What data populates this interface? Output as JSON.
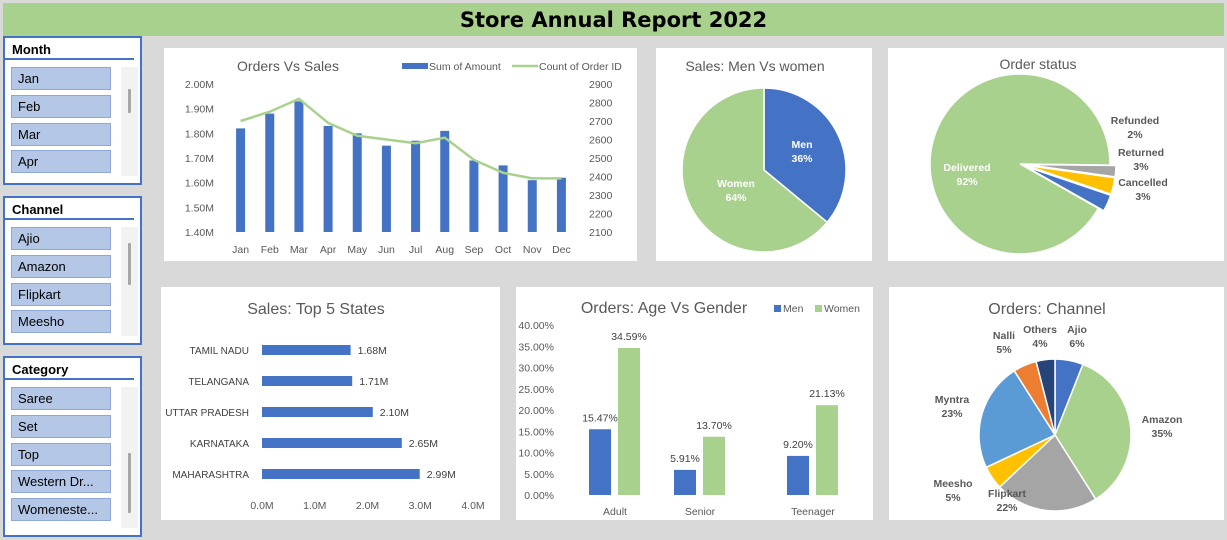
{
  "report_title": "Store Annual Report 2022",
  "colors": {
    "blue": "#4472c4",
    "green": "#a9d18e",
    "gray": "#a5a5a5",
    "yellow": "#ffc000",
    "lightblue": "#5b9bd5",
    "orange": "#ed7d31",
    "navy": "#264478",
    "title_bar": "#a9d18e"
  },
  "slicers": {
    "month": {
      "header": "Month",
      "items": [
        "Jan",
        "Feb",
        "Mar",
        "Apr"
      ]
    },
    "channel": {
      "header": "Channel",
      "items": [
        "Ajio",
        "Amazon",
        "Flipkart",
        "Meesho"
      ]
    },
    "category": {
      "header": "Category",
      "items": [
        "Saree",
        "Set",
        "Top",
        "Western Dr...",
        "Womeneste..."
      ]
    }
  },
  "chart_data": [
    {
      "id": "orders_vs_sales",
      "type": "bar",
      "title": "Orders Vs Sales",
      "categories": [
        "Jan",
        "Feb",
        "Mar",
        "Apr",
        "May",
        "Jun",
        "Jul",
        "Aug",
        "Sep",
        "Oct",
        "Nov",
        "Dec"
      ],
      "series": [
        {
          "name": "Sum of Amount",
          "type": "bar",
          "axis": "left",
          "values": [
            1.82,
            1.88,
            1.93,
            1.83,
            1.8,
            1.75,
            1.77,
            1.81,
            1.69,
            1.67,
            1.61,
            1.62
          ]
        },
        {
          "name": "Count of Order ID",
          "type": "line",
          "axis": "right",
          "values": [
            2700,
            2750,
            2820,
            2690,
            2620,
            2600,
            2580,
            2610,
            2490,
            2420,
            2390,
            2390
          ]
        }
      ],
      "left_ticks": [
        "2.00M",
        "1.90M",
        "1.80M",
        "1.70M",
        "1.60M",
        "1.50M",
        "1.40M"
      ],
      "ylim_left": [
        1.4,
        2.0
      ],
      "right_ticks": [
        "2900",
        "2800",
        "2700",
        "2600",
        "2500",
        "2400",
        "2300",
        "2200",
        "2100"
      ],
      "ylim_right": [
        2100,
        2900
      ],
      "legend": "top-right"
    },
    {
      "id": "men_vs_women",
      "type": "pie",
      "title": "Sales: Men Vs women",
      "slices": [
        {
          "name": "Men",
          "value": 36,
          "label": "36%",
          "color": "#4472c4"
        },
        {
          "name": "Women",
          "value": 64,
          "label": "64%",
          "color": "#a9d18e"
        }
      ]
    },
    {
      "id": "order_status",
      "type": "pie",
      "title": "Order status",
      "slices": [
        {
          "name": "Delivered",
          "value": 92,
          "label": "92%",
          "color": "#a9d18e"
        },
        {
          "name": "Refunded",
          "value": 2,
          "label": "2%",
          "color": "#a5a5a5"
        },
        {
          "name": "Returned",
          "value": 3,
          "label": "3%",
          "color": "#ffc000"
        },
        {
          "name": "Cancelled",
          "value": 3,
          "label": "3%",
          "color": "#4472c4"
        }
      ]
    },
    {
      "id": "top_states",
      "type": "bar",
      "orientation": "horizontal",
      "title": "Sales: Top 5 States",
      "categories": [
        "TAMIL NADU",
        "TELANGANA",
        "UTTAR PRADESH",
        "KARNATAKA",
        "MAHARASHTRA"
      ],
      "values": [
        1.68,
        1.71,
        2.1,
        2.65,
        2.99
      ],
      "labels": [
        "1.68M",
        "1.71M",
        "2.10M",
        "2.65M",
        "2.99M"
      ],
      "x_ticks": [
        "0.0M",
        "1.0M",
        "2.0M",
        "3.0M",
        "4.0M"
      ],
      "xlim": [
        0,
        4
      ]
    },
    {
      "id": "age_vs_gender",
      "type": "bar",
      "title": "Orders: Age Vs Gender",
      "categories": [
        "Adult",
        "Senior",
        "Teenager"
      ],
      "series": [
        {
          "name": "Men",
          "values": [
            15.47,
            5.91,
            9.2
          ],
          "labels": [
            "15.47%",
            "5.91%",
            "9.20%"
          ]
        },
        {
          "name": "Women",
          "values": [
            34.59,
            13.7,
            21.13
          ],
          "labels": [
            "34.59%",
            "13.70%",
            "21.13%"
          ]
        }
      ],
      "y_ticks": [
        "40.00%",
        "35.00%",
        "30.00%",
        "25.00%",
        "20.00%",
        "15.00%",
        "10.00%",
        "5.00%",
        "0.00%"
      ],
      "ylim": [
        0,
        40
      ],
      "legend": "top-right"
    },
    {
      "id": "orders_channel",
      "type": "pie",
      "title": "Orders: Channel",
      "slices": [
        {
          "name": "Ajio",
          "value": 6,
          "label": "6%",
          "color": "#4472c4"
        },
        {
          "name": "Amazon",
          "value": 35,
          "label": "35%",
          "color": "#a9d18e"
        },
        {
          "name": "Flipkart",
          "value": 22,
          "label": "22%",
          "color": "#a5a5a5"
        },
        {
          "name": "Meesho",
          "value": 5,
          "label": "5%",
          "color": "#ffc000"
        },
        {
          "name": "Myntra",
          "value": 23,
          "label": "23%",
          "color": "#5b9bd5"
        },
        {
          "name": "Nalli",
          "value": 5,
          "label": "5%",
          "color": "#ed7d31"
        },
        {
          "name": "Others",
          "value": 4,
          "label": "4%",
          "color": "#264478"
        }
      ]
    }
  ]
}
